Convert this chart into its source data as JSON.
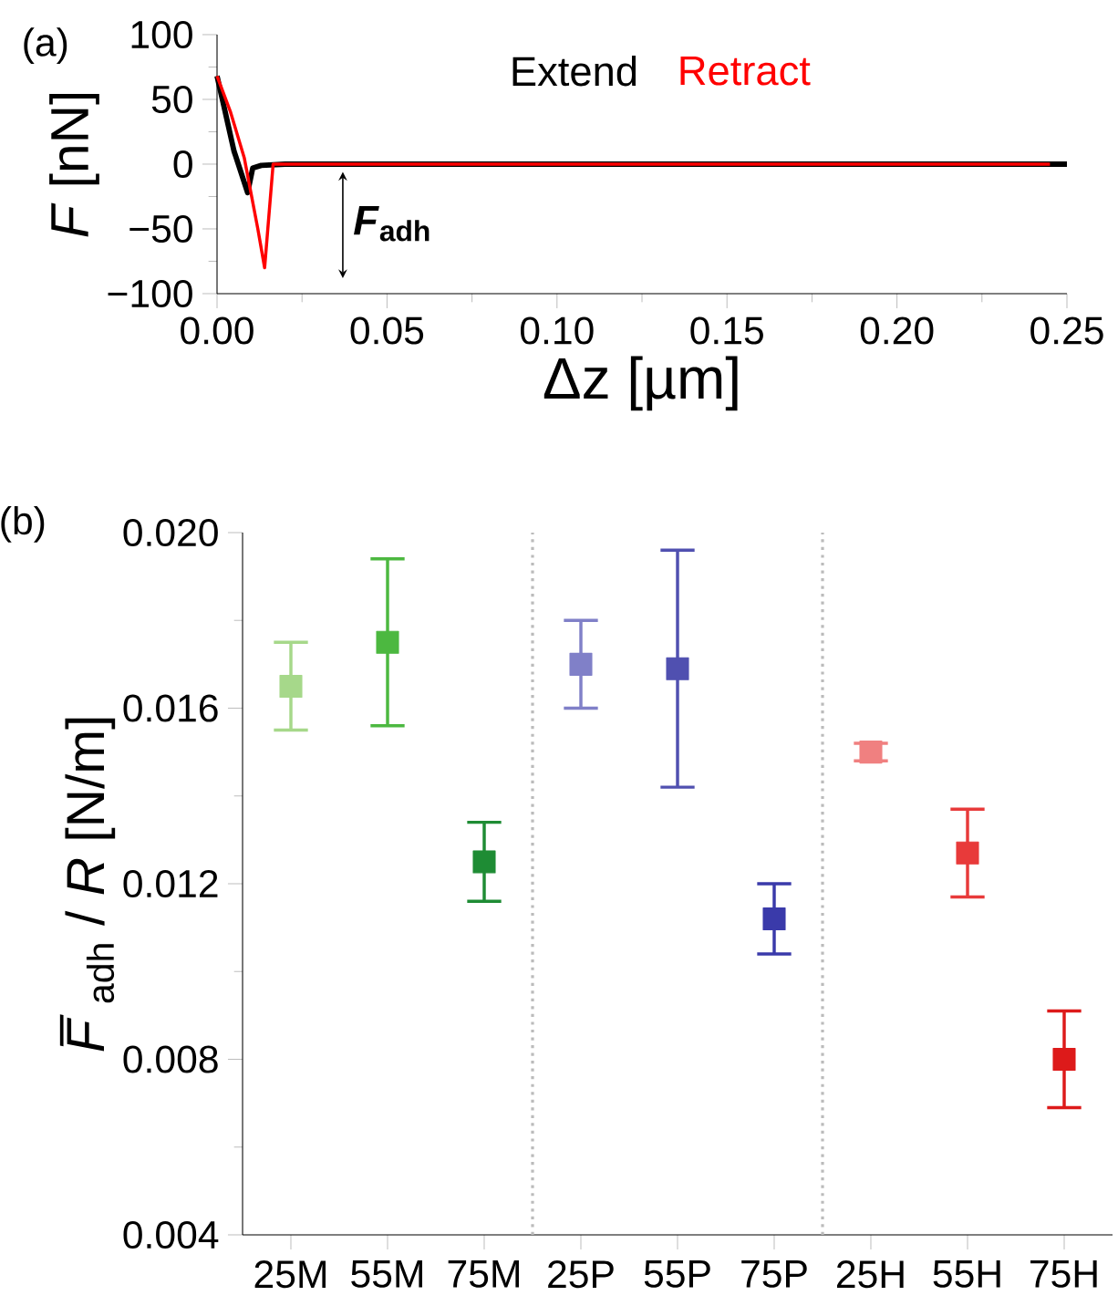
{
  "chart_data": [
    {
      "type": "line",
      "title": "(a)",
      "xlabel": "Δz [µm]",
      "ylabel": "*F* [nN]",
      "xlim": [
        0,
        0.25
      ],
      "ylim": [
        -100,
        100
      ],
      "xticks": [
        {
          "value": 0,
          "label": "0.00"
        },
        {
          "value": 0.05,
          "label": "0.05"
        },
        {
          "value": 0.1,
          "label": "0.10"
        },
        {
          "value": 0.15,
          "label": "0.15"
        },
        {
          "value": 0.2,
          "label": "0.20"
        },
        {
          "value": 0.25,
          "label": "0.25"
        }
      ],
      "yticks": [
        {
          "value": -100,
          "label": "−100"
        },
        {
          "value": -50,
          "label": "−50"
        },
        0,
        50,
        100
      ],
      "series": [
        {
          "name": "Extend",
          "color": "#000000",
          "x": [
            0,
            0.002,
            0.005,
            0.009,
            0.0105,
            0.013,
            0.02,
            0.05,
            0.1,
            0.15,
            0.2,
            0.25
          ],
          "values": [
            68,
            45,
            10,
            -22,
            -3,
            -1,
            0,
            0,
            0,
            0,
            0,
            0
          ]
        },
        {
          "name": "Retract",
          "color": "#ff0000",
          "x": [
            0,
            0.004,
            0.008,
            0.012,
            0.014,
            0.0165,
            0.02,
            0.05,
            0.1,
            0.15,
            0.2,
            0.245
          ],
          "values": [
            68,
            40,
            5,
            -50,
            -80,
            0,
            0,
            0,
            0,
            0,
            0,
            0
          ]
        }
      ],
      "annotations": [
        "*F*$_{adh}$"
      ]
    },
    {
      "type": "scatter",
      "title": "(b)",
      "ylabel": "*F̅*$_{adh}$ / *R* [N/m]",
      "categories": [
        "25M",
        "55M",
        "75M",
        "25P",
        "55P",
        "75P",
        "25H",
        "55H",
        "75H"
      ],
      "values": [
        0.0165,
        0.0175,
        0.0125,
        0.017,
        0.0169,
        0.0112,
        0.015,
        0.0127,
        0.008
      ],
      "errors": [
        [
          0.0155,
          0.0175
        ],
        [
          0.0156,
          0.0194
        ],
        [
          0.0116,
          0.0134
        ],
        [
          0.016,
          0.018
        ],
        [
          0.0142,
          0.0196
        ],
        [
          0.0104,
          0.012
        ],
        [
          0.0148,
          0.0152
        ],
        [
          0.0117,
          0.0137
        ],
        [
          0.0069,
          0.0091
        ]
      ],
      "colors": [
        "#a6d88a",
        "#4cb840",
        "#1e8c34",
        "#8080c8",
        "#5050b0",
        "#3a3aaa",
        "#f08080",
        "#e83a3a",
        "#dd1a1a"
      ],
      "marker": "square",
      "ylim": [
        0.004,
        0.02
      ],
      "yticks": [
        {
          "value": 0.004,
          "label": "0.004"
        },
        {
          "value": 0.008,
          "label": "0.008"
        },
        {
          "value": 0.012,
          "label": "0.012"
        },
        {
          "value": 0.016,
          "label": "0.016"
        },
        {
          "value": 0.02,
          "label": "0.020"
        }
      ]
    }
  ]
}
